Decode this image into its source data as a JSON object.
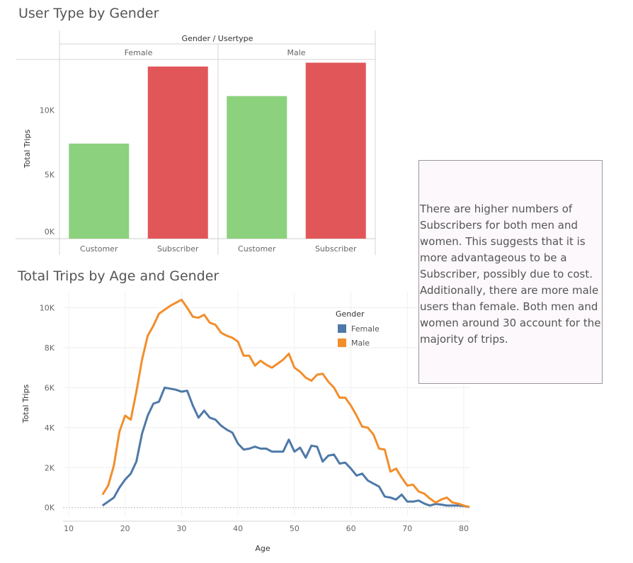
{
  "chart_data": [
    {
      "type": "bar",
      "title": "User Type by Gender",
      "header": "Gender / Usertype",
      "ylabel": "Total Trips",
      "ylim": [
        0,
        14500
      ],
      "yticks": [
        {
          "v": 0,
          "label": "0K"
        },
        {
          "v": 5000,
          "label": "5K"
        },
        {
          "v": 10000,
          "label": "10K"
        }
      ],
      "groups": [
        {
          "name": "Female",
          "bars": [
            {
              "category": "Customer",
              "value": 7400,
              "color": "#8cd17d"
            },
            {
              "category": "Subscriber",
              "value": 13400,
              "color": "#e15759"
            }
          ]
        },
        {
          "name": "Male",
          "bars": [
            {
              "category": "Customer",
              "value": 11100,
              "color": "#8cd17d"
            },
            {
              "category": "Subscriber",
              "value": 13700,
              "color": "#e15759"
            }
          ]
        }
      ]
    },
    {
      "type": "line",
      "title": "Total Trips by Age and Gender",
      "xlabel": "Age",
      "ylabel": "Total Trips",
      "xlim": [
        9,
        81
      ],
      "ylim": [
        -400,
        10800
      ],
      "xticks": [
        10,
        20,
        30,
        40,
        50,
        60,
        70,
        80
      ],
      "yticks": [
        {
          "v": 0,
          "label": "0K"
        },
        {
          "v": 2000,
          "label": "2K"
        },
        {
          "v": 4000,
          "label": "4K"
        },
        {
          "v": 6000,
          "label": "6K"
        },
        {
          "v": 8000,
          "label": "8K"
        },
        {
          "v": 10000,
          "label": "10K"
        }
      ],
      "legend_title": "Gender",
      "legend_position": "top-right",
      "series": [
        {
          "name": "Female",
          "color": "#4e79a7",
          "x": [
            16,
            17,
            18,
            19,
            20,
            21,
            22,
            23,
            24,
            25,
            26,
            27,
            28,
            29,
            30,
            31,
            32,
            33,
            34,
            35,
            36,
            37,
            38,
            39,
            40,
            41,
            42,
            43,
            44,
            45,
            46,
            47,
            48,
            49,
            50,
            51,
            52,
            53,
            54,
            55,
            56,
            57,
            58,
            59,
            60,
            61,
            62,
            63,
            64,
            65,
            66,
            67,
            68,
            69,
            70,
            71,
            72,
            73,
            74,
            75,
            76,
            77,
            78,
            79,
            80,
            81
          ],
          "y": [
            100,
            300,
            500,
            1000,
            1400,
            1700,
            2300,
            3700,
            4600,
            5200,
            5300,
            6000,
            5950,
            5900,
            5800,
            5850,
            5100,
            4500,
            4850,
            4500,
            4400,
            4100,
            3900,
            3750,
            3200,
            2900,
            2950,
            3050,
            2950,
            2950,
            2800,
            2800,
            2800,
            3400,
            2800,
            3000,
            2500,
            3100,
            3050,
            2300,
            2600,
            2650,
            2200,
            2250,
            1950,
            1600,
            1700,
            1350,
            1200,
            1050,
            550,
            500,
            400,
            650,
            300,
            300,
            350,
            200,
            100,
            180,
            150,
            100,
            100,
            100,
            80,
            30
          ]
        },
        {
          "name": "Male",
          "color": "#f28e2b",
          "x": [
            16,
            17,
            18,
            19,
            20,
            21,
            22,
            23,
            24,
            25,
            26,
            27,
            28,
            29,
            30,
            31,
            32,
            33,
            34,
            35,
            36,
            37,
            38,
            39,
            40,
            41,
            42,
            43,
            44,
            45,
            46,
            47,
            48,
            49,
            50,
            51,
            52,
            53,
            54,
            55,
            56,
            57,
            58,
            59,
            60,
            61,
            62,
            63,
            64,
            65,
            66,
            67,
            68,
            69,
            70,
            71,
            72,
            73,
            74,
            75,
            76,
            77,
            78,
            79,
            80,
            81
          ],
          "y": [
            650,
            1100,
            2100,
            3800,
            4600,
            4400,
            5800,
            7400,
            8600,
            9100,
            9700,
            9900,
            10100,
            10250,
            10400,
            10000,
            9550,
            9500,
            9650,
            9250,
            9150,
            8750,
            8600,
            8500,
            8300,
            7600,
            7600,
            7100,
            7350,
            7150,
            7000,
            7200,
            7400,
            7700,
            7000,
            6800,
            6500,
            6350,
            6650,
            6700,
            6300,
            6000,
            5500,
            5500,
            5100,
            4600,
            4050,
            4000,
            3650,
            2950,
            2900,
            1800,
            1950,
            1500,
            1100,
            1150,
            800,
            700,
            450,
            250,
            400,
            500,
            250,
            200,
            100,
            20
          ]
        }
      ]
    }
  ],
  "annotation": {
    "text": "There are higher numbers of Subscribers for both men and women. This suggests that it is more advantageous to be a Subscriber, possibly due to cost. Additionally, there are more male users than female. Both men and women around  30 account for the majority of trips."
  }
}
